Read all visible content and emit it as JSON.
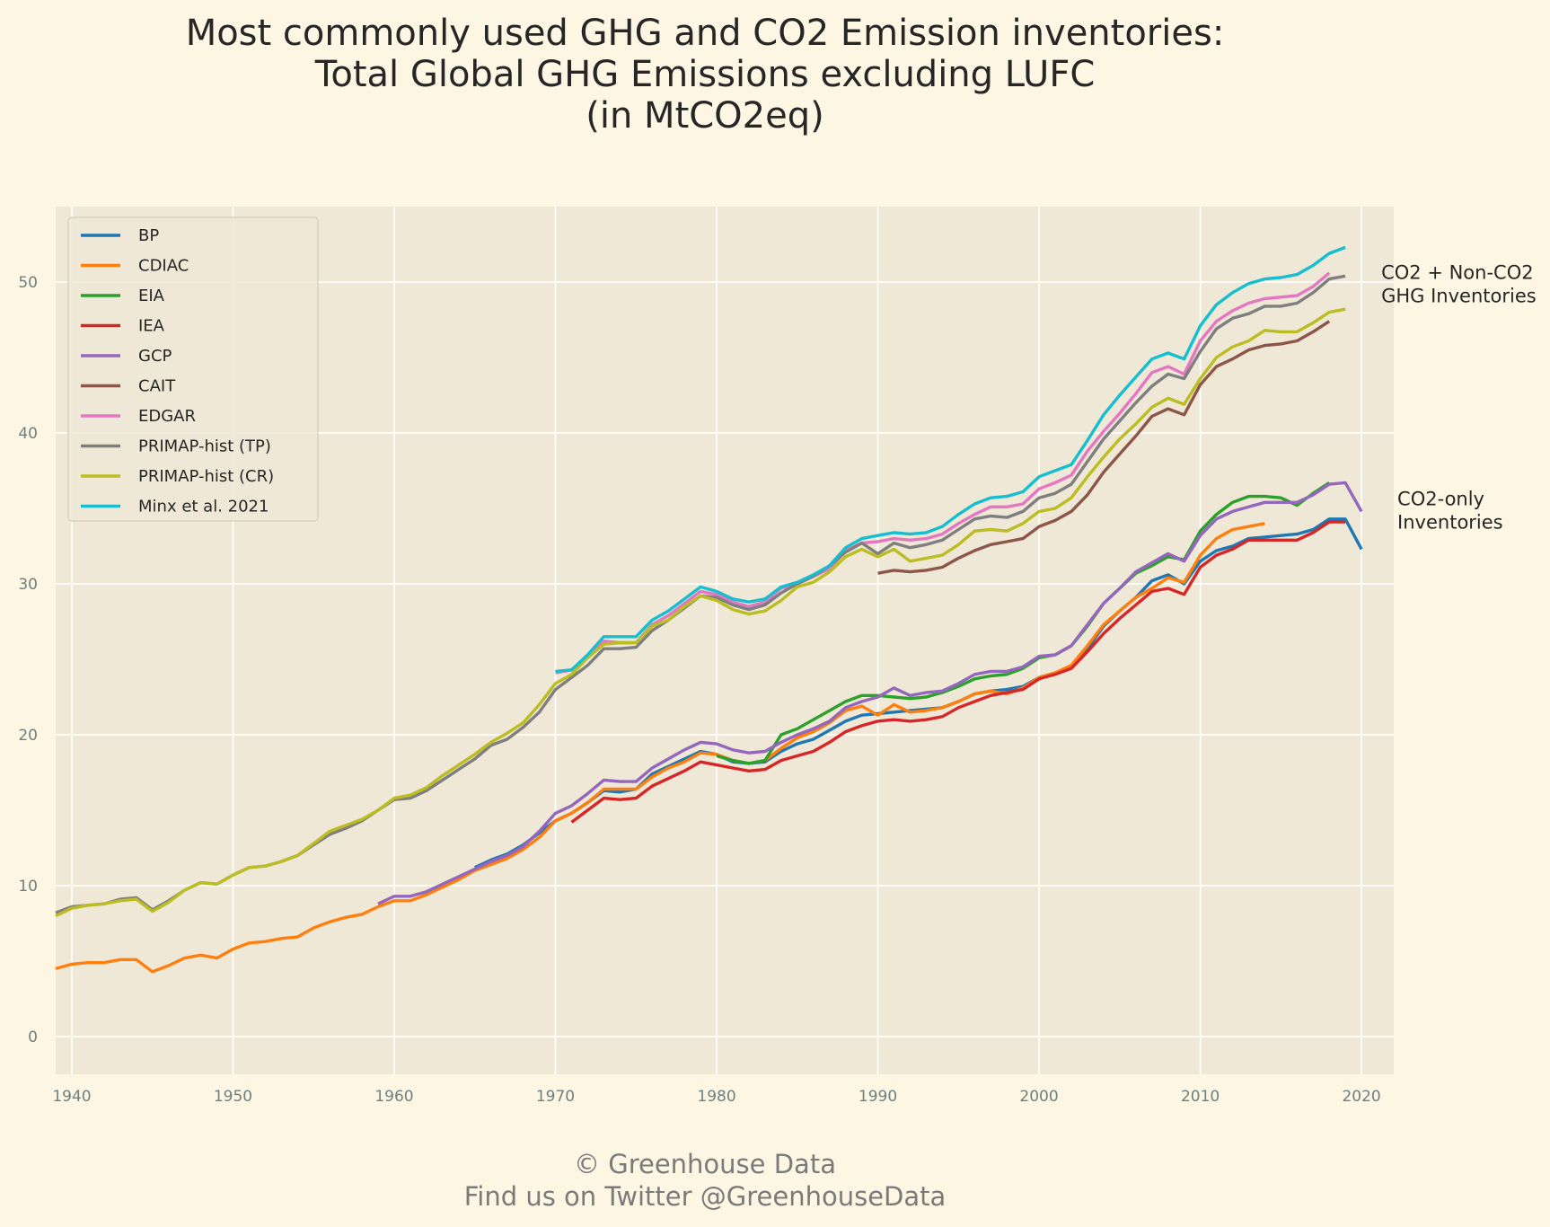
{
  "title": {
    "line1": "Most commonly used GHG and CO2 Emission inventories:",
    "line2": "Total Global GHG Emissions excluding LUFC",
    "line3": "(in MtCO2eq)"
  },
  "footer": {
    "line1": "© Greenhouse Data",
    "line2": "Find us on Twitter @GreenhouseData"
  },
  "chart_data": {
    "type": "line",
    "title": "Most commonly used GHG and CO2 Emission inventories: Total Global GHG Emissions excluding LUFC (in MtCO2eq)",
    "xlim": [
      1939,
      2022
    ],
    "ylim": [
      -2.5,
      55
    ],
    "x_ticks": [
      1940,
      1950,
      1960,
      1970,
      1980,
      1990,
      2000,
      2010,
      2020
    ],
    "y_ticks": [
      0,
      10,
      20,
      30,
      40,
      50
    ],
    "grid": true,
    "legend_position": "top-left",
    "annotations": [
      {
        "lines": [
          "CO2 + Non-CO2",
          "GHG Inventories"
        ],
        "x": 2020,
        "y": 49.8
      },
      {
        "lines": [
          "CO2-only",
          "Inventories"
        ],
        "x": 2021,
        "y": 34.8
      }
    ],
    "series": [
      {
        "name": "BP",
        "color": "#1f77b4",
        "start": 1965,
        "values": [
          11.2,
          11.7,
          12.1,
          12.7,
          13.5,
          14.3,
          14.8,
          15.5,
          16.3,
          16.2,
          16.4,
          17.4,
          17.9,
          18.4,
          18.9,
          18.7,
          18.2,
          18.1,
          18.2,
          18.9,
          19.4,
          19.7,
          20.3,
          20.9,
          21.3,
          21.4,
          21.5,
          21.6,
          21.7,
          21.8,
          22.2,
          22.7,
          22.9,
          23.0,
          23.2,
          23.8,
          24.1,
          24.5,
          25.7,
          27.2,
          28.2,
          29.1,
          30.2,
          30.6,
          30.0,
          31.5,
          32.2,
          32.5,
          33.0,
          33.1,
          33.2,
          33.3,
          33.6,
          34.3,
          34.3,
          32.3
        ]
      },
      {
        "name": "CDIAC",
        "color": "#ff7f0e",
        "start": 1939,
        "values": [
          4.5,
          4.8,
          4.9,
          4.9,
          5.1,
          5.1,
          4.3,
          4.7,
          5.2,
          5.4,
          5.2,
          5.8,
          6.2,
          6.3,
          6.5,
          6.6,
          7.2,
          7.6,
          7.9,
          8.1,
          8.6,
          9.0,
          9.0,
          9.4,
          9.9,
          10.4,
          11.0,
          11.4,
          11.8,
          12.4,
          13.2,
          14.3,
          14.8,
          15.5,
          16.4,
          16.4,
          16.4,
          17.2,
          17.8,
          18.2,
          18.8,
          18.7,
          18.3,
          18.1,
          18.3,
          19.1,
          19.8,
          20.2,
          20.8,
          21.6,
          21.9,
          21.3,
          22.0,
          21.5,
          21.6,
          21.8,
          22.2,
          22.7,
          22.9,
          22.7,
          23.1,
          23.8,
          24.1,
          24.6,
          25.9,
          27.3,
          28.2,
          29.1,
          29.7,
          30.4,
          30.1,
          31.9,
          33.0,
          33.6,
          33.8,
          34.0
        ]
      },
      {
        "name": "EIA",
        "color": "#2ca02c",
        "start": 1980,
        "values": [
          18.6,
          18.3,
          18.1,
          18.3,
          20.0,
          20.4,
          21.0,
          21.6,
          22.2,
          22.6,
          22.6,
          22.5,
          22.4,
          22.5,
          22.8,
          23.2,
          23.7,
          23.9,
          24.0,
          24.4,
          25.1,
          25.3,
          25.9,
          27.2,
          28.7,
          29.7,
          30.7,
          31.2,
          31.8,
          31.6,
          33.5,
          34.6,
          35.4,
          35.8,
          35.8,
          35.7,
          35.2,
          36.0,
          36.7
        ]
      },
      {
        "name": "IEA",
        "color": "#d62728",
        "start": 1971,
        "values": [
          14.2,
          15.0,
          15.8,
          15.7,
          15.8,
          16.6,
          17.1,
          17.6,
          18.2,
          18.0,
          17.8,
          17.6,
          17.7,
          18.3,
          18.6,
          18.9,
          19.5,
          20.2,
          20.6,
          20.9,
          21.0,
          20.9,
          21.0,
          21.2,
          21.8,
          22.2,
          22.6,
          22.8,
          23.0,
          23.7,
          24.0,
          24.4,
          25.5,
          26.7,
          27.7,
          28.6,
          29.5,
          29.7,
          29.3,
          31.1,
          31.9,
          32.3,
          32.9,
          32.9,
          32.9,
          32.9,
          33.4,
          34.1,
          34.1
        ]
      },
      {
        "name": "GCP",
        "color": "#9467bd",
        "start": 1959,
        "values": [
          8.8,
          9.3,
          9.3,
          9.6,
          10.1,
          10.6,
          11.1,
          11.6,
          12.0,
          12.6,
          13.6,
          14.8,
          15.3,
          16.1,
          17.0,
          16.9,
          16.9,
          17.8,
          18.4,
          19.0,
          19.5,
          19.4,
          19.0,
          18.8,
          18.9,
          19.5,
          20.0,
          20.4,
          20.9,
          21.8,
          22.2,
          22.5,
          23.1,
          22.6,
          22.8,
          22.9,
          23.4,
          24.0,
          24.2,
          24.2,
          24.5,
          25.2,
          25.3,
          25.9,
          27.3,
          28.7,
          29.7,
          30.8,
          31.4,
          32.0,
          31.5,
          33.2,
          34.3,
          34.8,
          35.1,
          35.4,
          35.4,
          35.4,
          35.9,
          36.6,
          36.7,
          34.8
        ]
      },
      {
        "name": "CAIT",
        "color": "#8c564b",
        "start": 1990,
        "values": [
          30.7,
          30.9,
          30.8,
          30.9,
          31.1,
          31.7,
          32.2,
          32.6,
          32.8,
          33.0,
          33.8,
          34.2,
          34.8,
          35.9,
          37.4,
          38.6,
          39.8,
          41.1,
          41.6,
          41.2,
          43.2,
          44.4,
          44.9,
          45.5,
          45.8,
          45.9,
          46.1,
          46.7,
          47.4
        ]
      },
      {
        "name": "EDGAR",
        "color": "#e377c2",
        "start": 1970,
        "values": [
          24.1,
          24.3,
          25.1,
          26.2,
          26.1,
          26.1,
          27.3,
          27.9,
          28.7,
          29.5,
          29.3,
          28.8,
          28.5,
          28.8,
          29.7,
          30.0,
          30.5,
          31.0,
          32.2,
          32.7,
          32.8,
          33.0,
          32.9,
          33.0,
          33.3,
          34.0,
          34.6,
          35.1,
          35.1,
          35.3,
          36.3,
          36.7,
          37.2,
          38.8,
          40.1,
          41.3,
          42.6,
          44.0,
          44.4,
          43.9,
          46.1,
          47.4,
          48.1,
          48.6,
          48.9,
          49.0,
          49.1,
          49.7,
          50.6
        ]
      },
      {
        "name": "PRIMAP-hist (TP)",
        "color": "#7f7f7f",
        "start": 1939,
        "values": [
          8.2,
          8.6,
          8.7,
          8.8,
          9.1,
          9.2,
          8.4,
          9.0,
          9.7,
          10.2,
          10.1,
          10.7,
          11.2,
          11.3,
          11.6,
          12.0,
          12.7,
          13.4,
          13.8,
          14.3,
          15.0,
          15.7,
          15.8,
          16.3,
          17.0,
          17.7,
          18.4,
          19.3,
          19.7,
          20.5,
          21.5,
          23.0,
          23.8,
          24.6,
          25.7,
          25.7,
          25.8,
          26.9,
          27.6,
          28.4,
          29.2,
          29.1,
          28.6,
          28.3,
          28.6,
          29.4,
          30.0,
          30.5,
          31.2,
          32.1,
          32.7,
          32.0,
          32.7,
          32.4,
          32.6,
          32.9,
          33.6,
          34.3,
          34.5,
          34.4,
          34.8,
          35.7,
          36.0,
          36.6,
          38.1,
          39.6,
          40.8,
          42.0,
          43.1,
          43.9,
          43.6,
          45.4,
          46.9,
          47.6,
          47.9,
          48.4,
          48.4,
          48.6,
          49.3,
          50.2,
          50.4
        ]
      },
      {
        "name": "PRIMAP-hist (CR)",
        "color": "#bcbd22",
        "start": 1939,
        "values": [
          8.0,
          8.5,
          8.7,
          8.8,
          9.0,
          9.1,
          8.3,
          8.9,
          9.7,
          10.2,
          10.1,
          10.7,
          11.2,
          11.3,
          11.6,
          12.0,
          12.8,
          13.6,
          14.0,
          14.4,
          15.0,
          15.8,
          16.0,
          16.5,
          17.3,
          18.0,
          18.7,
          19.5,
          20.1,
          20.8,
          22.0,
          23.4,
          24.0,
          25.1,
          26.0,
          26.1,
          26.1,
          27.2,
          27.6,
          28.5,
          29.2,
          28.9,
          28.3,
          28.0,
          28.2,
          28.9,
          29.8,
          30.1,
          30.8,
          31.8,
          32.3,
          31.8,
          32.3,
          31.5,
          31.7,
          31.9,
          32.6,
          33.5,
          33.6,
          33.5,
          34.0,
          34.8,
          35.0,
          35.7,
          37.1,
          38.4,
          39.6,
          40.6,
          41.7,
          42.3,
          41.9,
          43.6,
          45.0,
          45.7,
          46.1,
          46.8,
          46.7,
          46.7,
          47.3,
          48.0,
          48.2
        ]
      },
      {
        "name": "Minx et al. 2021",
        "color": "#17becf",
        "start": 1970,
        "values": [
          24.2,
          24.3,
          25.3,
          26.5,
          26.5,
          26.5,
          27.6,
          28.2,
          29.0,
          29.8,
          29.5,
          29.0,
          28.8,
          29.0,
          29.8,
          30.1,
          30.6,
          31.2,
          32.4,
          33.0,
          33.2,
          33.4,
          33.3,
          33.4,
          33.8,
          34.6,
          35.3,
          35.7,
          35.8,
          36.1,
          37.1,
          37.5,
          37.9,
          39.5,
          41.2,
          42.5,
          43.7,
          44.9,
          45.3,
          44.9,
          47.1,
          48.5,
          49.3,
          49.9,
          50.2,
          50.3,
          50.5,
          51.1,
          51.9,
          52.3
        ]
      }
    ]
  }
}
